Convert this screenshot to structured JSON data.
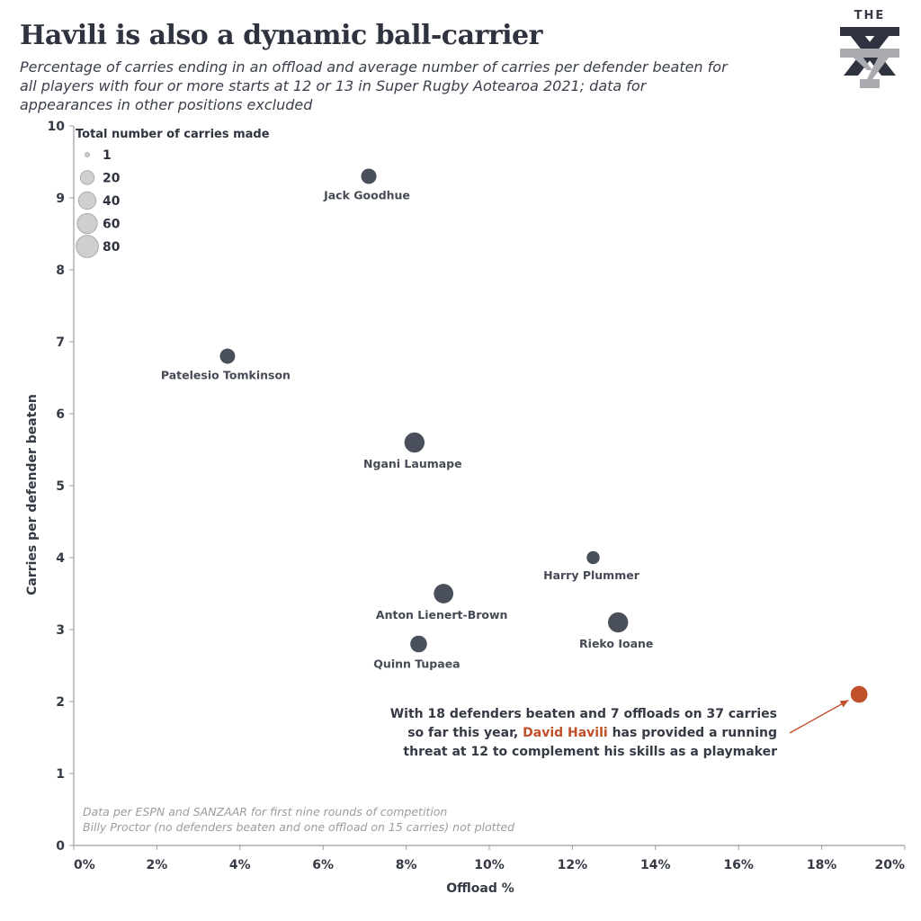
{
  "header": {
    "title": "Havili is also a dynamic ball-carrier",
    "subtitle": "Percentage of carries ending in an offload and average number of carries per defender beaten for all players with four or more starts at 12 or 13 in Super Rugby Aotearoa 2021; data for appearances in other positions excluded"
  },
  "logo": {
    "text": "THE",
    "colors": {
      "dark": "#2f3340",
      "light": "#a9abb0"
    }
  },
  "notes": {
    "line1": "Data per ESPN and SANZAAR for first nine rounds of competition",
    "line2": "Billy Proctor (no defenders beaten and one offload on 15 carries) not plotted"
  },
  "annotation": {
    "before": "With 18 defenders beaten and 7 offloads on 37 carries so far this year, ",
    "highlight": "David Havili",
    "after": " has provided a running threat at 12 to complement his skills as a playmaker"
  },
  "colors": {
    "point": "#4a4f5c",
    "highlight": "#c0502a",
    "axis": "#9a9ca2",
    "legend_circle": "#cfcfcf"
  },
  "chart_data": {
    "type": "scatter",
    "xlabel": "Offload %",
    "ylabel": "Carries per defender beaten",
    "xlim": [
      0,
      20
    ],
    "ylim": [
      0,
      10
    ],
    "x_ticks": [
      "0%",
      "2%",
      "4%",
      "6%",
      "8%",
      "10%",
      "12%",
      "14%",
      "16%",
      "18%",
      "20%"
    ],
    "y_ticks": [
      "0",
      "1",
      "2",
      "3",
      "4",
      "5",
      "6",
      "7",
      "8",
      "9",
      "10"
    ],
    "grid": false,
    "legend": {
      "title": "Total number of carries made",
      "placement": "top-left",
      "sizes": [
        1,
        20,
        40,
        60,
        80
      ],
      "labels": [
        "1",
        "20",
        "40",
        "60",
        "80"
      ]
    },
    "points": [
      {
        "label": "Jack Goodhue",
        "x": 7.1,
        "y": 9.3,
        "carries": 28
      },
      {
        "label": "Patelesio Tomkinson",
        "x": 3.7,
        "y": 6.8,
        "carries": 27
      },
      {
        "label": "Ngani Laumape",
        "x": 8.2,
        "y": 5.6,
        "carries": 61
      },
      {
        "label": "Harry Plummer",
        "x": 12.5,
        "y": 4.0,
        "carries": 16
      },
      {
        "label": "Anton Lienert-Brown",
        "x": 8.9,
        "y": 3.5,
        "carries": 56
      },
      {
        "label": "Rieko Ioane",
        "x": 13.1,
        "y": 3.1,
        "carries": 61
      },
      {
        "label": "Quinn Tupaea",
        "x": 8.3,
        "y": 2.8,
        "carries": 36
      },
      {
        "label": "",
        "x": 18.9,
        "y": 2.1,
        "carries": 37,
        "highlight": true
      }
    ]
  }
}
